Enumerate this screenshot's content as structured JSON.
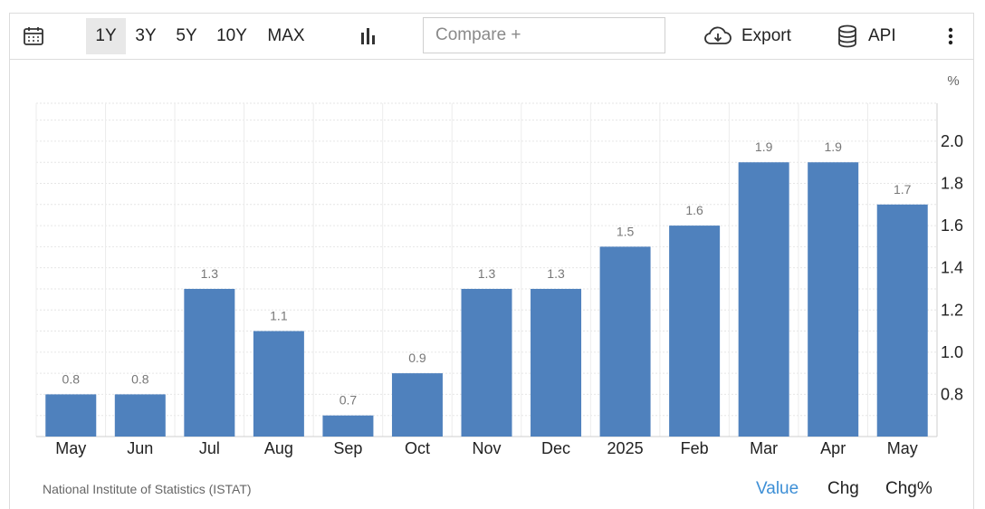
{
  "toolbar": {
    "calendar_icon": "calendar-icon",
    "ranges": [
      {
        "label": "1Y",
        "active": true
      },
      {
        "label": "3Y",
        "active": false
      },
      {
        "label": "5Y",
        "active": false
      },
      {
        "label": "10Y",
        "active": false
      },
      {
        "label": "MAX",
        "active": false
      }
    ],
    "chart_type_icon": "bar-chart-icon",
    "compare_placeholder": "Compare +",
    "export_label": "Export",
    "export_icon": "cloud-download-icon",
    "api_label": "API",
    "api_icon": "database-icon",
    "more_icon": "vertical-ellipsis-icon"
  },
  "chart_data": {
    "type": "bar",
    "categories": [
      "May",
      "Jun",
      "Jul",
      "Aug",
      "Sep",
      "Oct",
      "Nov",
      "Dec",
      "2025",
      "Feb",
      "Mar",
      "Apr",
      "May"
    ],
    "values": [
      0.8,
      0.8,
      1.3,
      1.1,
      0.7,
      0.9,
      1.3,
      1.3,
      1.5,
      1.6,
      1.9,
      1.9,
      1.7
    ],
    "value_labels": [
      "0.8",
      "0.8",
      "1.3",
      "1.1",
      "0.7",
      "0.9",
      "1.3",
      "1.3",
      "1.5",
      "1.6",
      "1.9",
      "1.9",
      "1.7"
    ],
    "y_unit": "%",
    "y_ticks": [
      "0.8",
      "1.0",
      "1.2",
      "1.4",
      "1.6",
      "1.8",
      "2.0"
    ],
    "ylim": [
      0.6,
      2.18
    ],
    "bar_color": "#4f81bd",
    "grid": true,
    "y_axis_side": "right"
  },
  "footer": {
    "source": "National Institute of Statistics (ISTAT)",
    "tabs": [
      {
        "label": "Value",
        "active": true
      },
      {
        "label": "Chg",
        "active": false
      },
      {
        "label": "Chg%",
        "active": false
      }
    ],
    "active_color": "#3d8fd6"
  }
}
